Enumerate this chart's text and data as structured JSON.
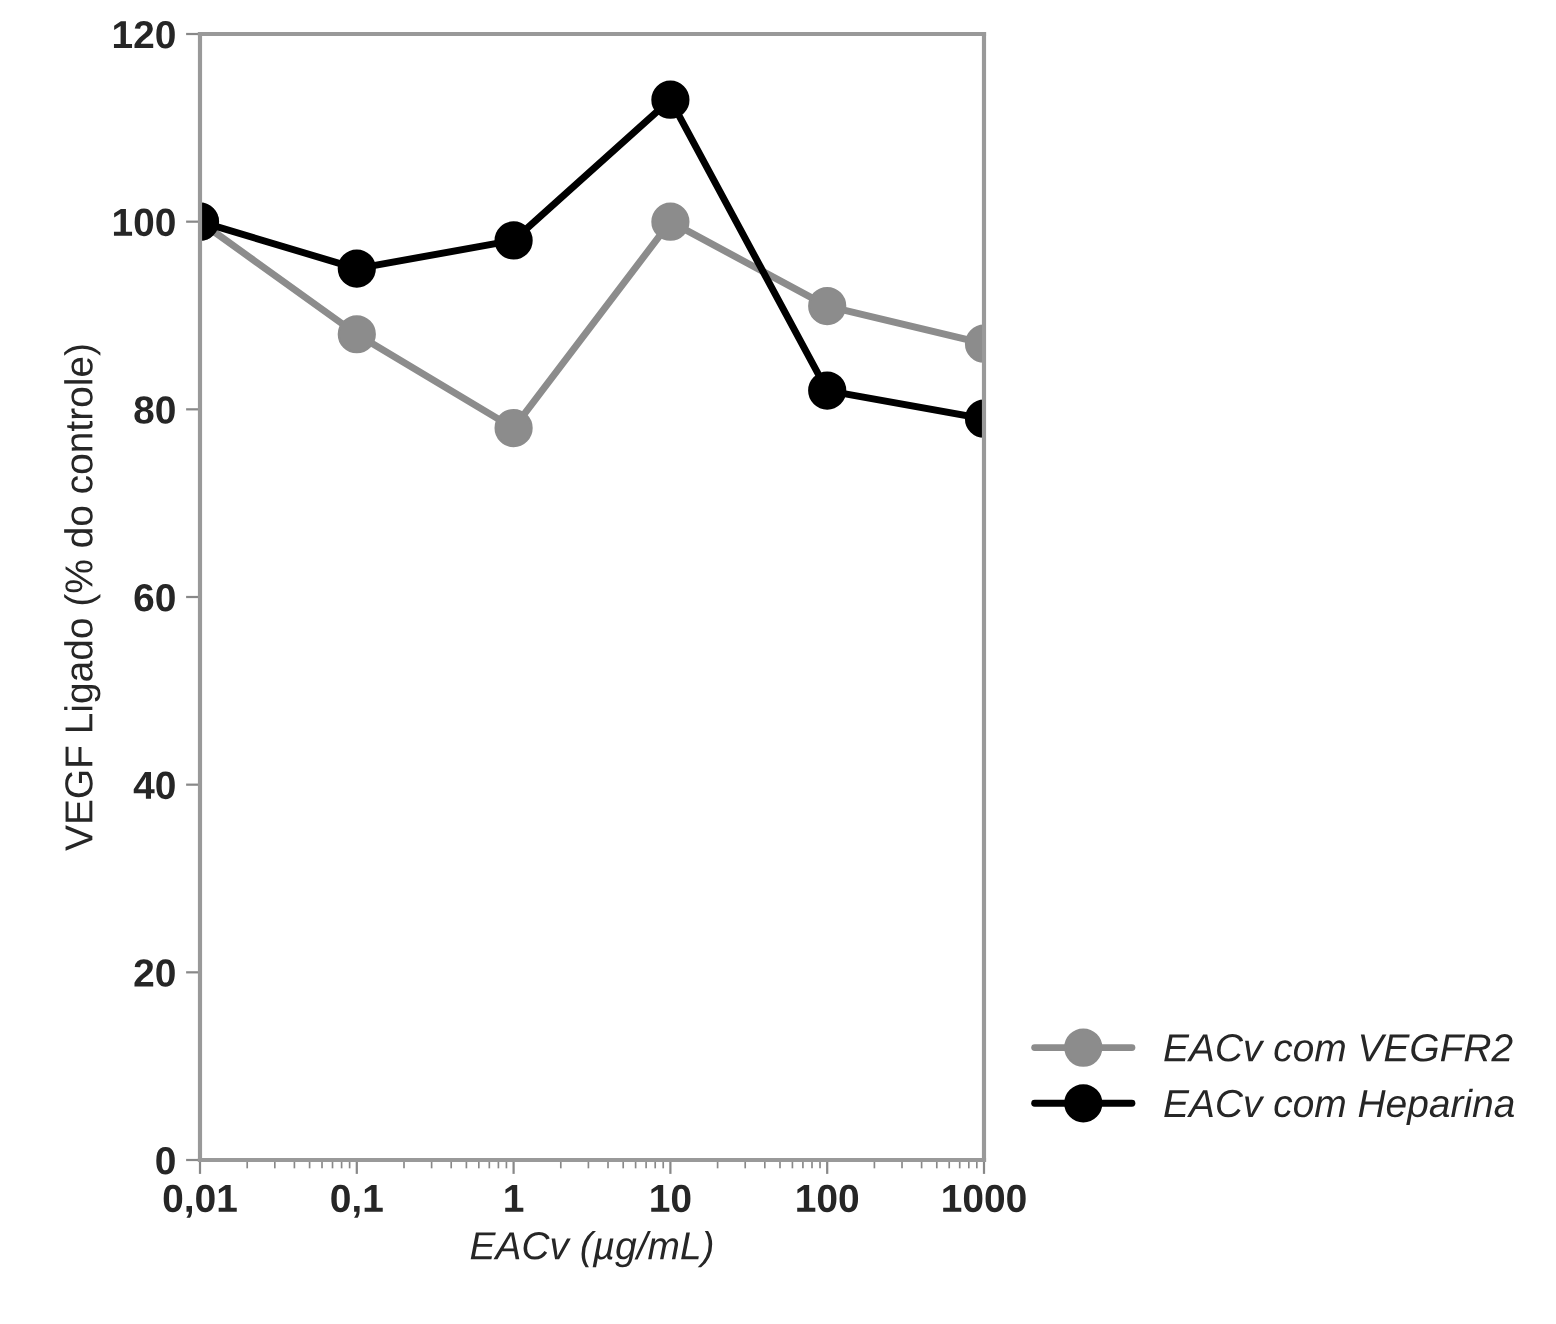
{
  "chart_data": {
    "type": "line",
    "xlabel": "EACv (µg/mL)",
    "ylabel": "VEGF Ligado (% do controle)",
    "x": [
      0.01,
      0.1,
      1,
      10,
      100,
      1000
    ],
    "series": [
      {
        "name": "EACv com VEGFR2",
        "color": "#8c8c8c",
        "values": [
          100,
          88,
          78,
          100,
          91,
          87
        ]
      },
      {
        "name": "EACv com Heparina",
        "color": "#000000",
        "values": [
          100,
          95,
          98,
          113,
          82,
          79
        ]
      }
    ],
    "log": "x",
    "xlim": [
      0.01,
      1000
    ],
    "xticks": [
      {
        "value": 0.01,
        "label": "0,01"
      },
      {
        "value": 0.1,
        "label": "0,1"
      },
      1,
      10,
      100,
      1000
    ],
    "ylim": [
      0,
      120
    ],
    "yticks": [
      0,
      20,
      40,
      60,
      80,
      100,
      120
    ],
    "marker": "circle",
    "line_style": "solid",
    "grid": false,
    "legend": "bottom right"
  }
}
